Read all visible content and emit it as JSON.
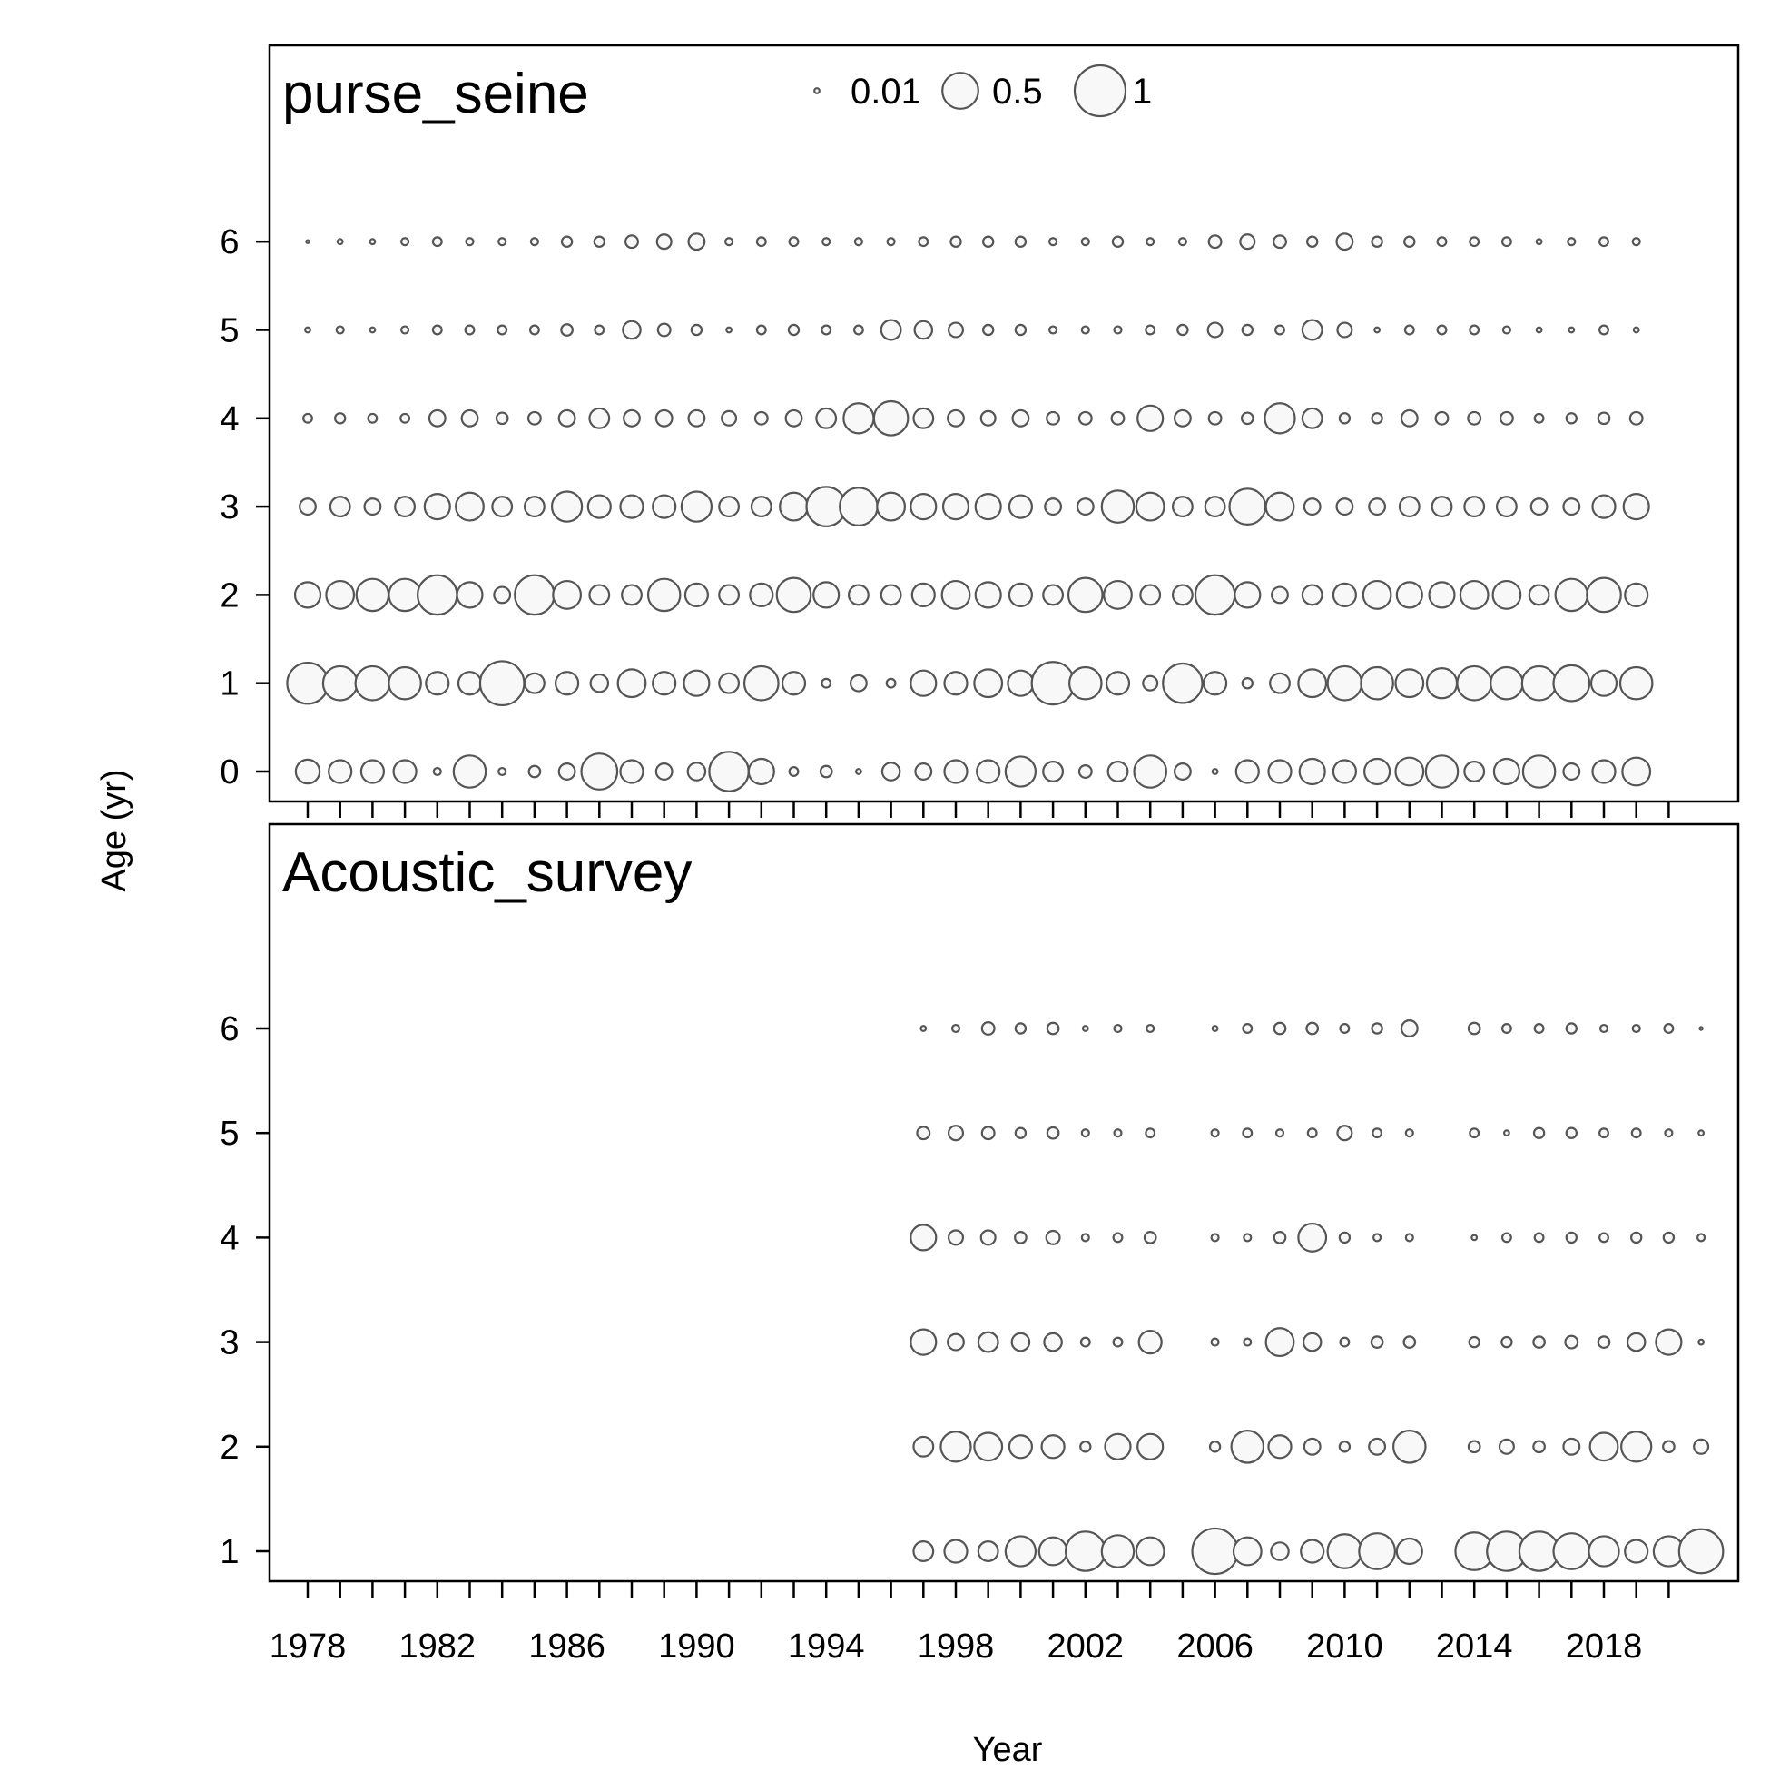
{
  "chart_data": {
    "type": "scatter",
    "subtype": "bubble",
    "xlabel": "Year",
    "ylabel": "Age (yr)",
    "x_ticks": [
      1978,
      1982,
      1986,
      1990,
      1994,
      1998,
      2002,
      2006,
      2010,
      2014,
      2018
    ],
    "x_minor_tick_years": [
      1978,
      1979,
      1980,
      1981,
      1982,
      1983,
      1984,
      1985,
      1986,
      1987,
      1988,
      1989,
      1990,
      1991,
      1992,
      1993,
      1994,
      1995,
      1996,
      1997,
      1998,
      1999,
      2000,
      2001,
      2002,
      2003,
      2004,
      2005,
      2006,
      2007,
      2008,
      2009,
      2010,
      2011,
      2012,
      2013,
      2014,
      2015,
      2016,
      2017,
      2018,
      2019,
      2020
    ],
    "xlim": [
      1976.8,
      2022.2
    ],
    "bubble_scale": "area proportional to value; 1 = largest bubble",
    "colors": {
      "bubble_stroke": "#555555",
      "bubble_fill": "#f8f8f8",
      "axis": "#000000"
    },
    "legend": {
      "position": "top-center of upper panel",
      "entries": [
        {
          "value": 0.01,
          "label": "0.01"
        },
        {
          "value": 0.5,
          "label": "0.5"
        },
        {
          "value": 1,
          "label": "1"
        }
      ]
    },
    "panels": [
      {
        "title": "purse_seine",
        "ages": [
          0,
          1,
          2,
          3,
          4,
          5,
          6
        ],
        "years": [
          1978,
          1979,
          1980,
          1981,
          1982,
          1983,
          1984,
          1985,
          1986,
          1987,
          1988,
          1989,
          1990,
          1991,
          1992,
          1993,
          1994,
          1995,
          1996,
          1997,
          1998,
          1999,
          2000,
          2001,
          2002,
          2003,
          2004,
          2005,
          2006,
          2007,
          2008,
          2009,
          2010,
          2011,
          2012,
          2013,
          2014,
          2015,
          2016,
          2017,
          2018,
          2019
        ],
        "values_by_age": {
          "0": [
            0.22,
            0.2,
            0.2,
            0.2,
            0.02,
            0.4,
            0.02,
            0.05,
            0.1,
            0.5,
            0.2,
            0.1,
            0.12,
            0.6,
            0.25,
            0.03,
            0.05,
            0.01,
            0.12,
            0.1,
            0.2,
            0.2,
            0.35,
            0.15,
            0.06,
            0.15,
            0.4,
            0.1,
            0.01,
            0.2,
            0.2,
            0.25,
            0.2,
            0.25,
            0.3,
            0.4,
            0.15,
            0.25,
            0.4,
            0.1,
            0.2,
            0.3
          ],
          "1": [
            0.65,
            0.45,
            0.45,
            0.4,
            0.2,
            0.2,
            0.75,
            0.15,
            0.2,
            0.12,
            0.3,
            0.2,
            0.25,
            0.15,
            0.45,
            0.2,
            0.03,
            0.1,
            0.03,
            0.25,
            0.2,
            0.3,
            0.25,
            0.7,
            0.4,
            0.2,
            0.08,
            0.6,
            0.2,
            0.04,
            0.15,
            0.3,
            0.45,
            0.4,
            0.3,
            0.35,
            0.45,
            0.4,
            0.45,
            0.5,
            0.25,
            0.4
          ],
          "2": [
            0.25,
            0.3,
            0.4,
            0.4,
            0.6,
            0.25,
            0.1,
            0.6,
            0.3,
            0.15,
            0.15,
            0.4,
            0.2,
            0.15,
            0.2,
            0.45,
            0.25,
            0.15,
            0.15,
            0.2,
            0.3,
            0.25,
            0.2,
            0.15,
            0.45,
            0.3,
            0.15,
            0.15,
            0.6,
            0.25,
            0.1,
            0.15,
            0.2,
            0.3,
            0.25,
            0.25,
            0.3,
            0.3,
            0.15,
            0.4,
            0.45,
            0.2
          ],
          "3": [
            0.1,
            0.15,
            0.1,
            0.15,
            0.25,
            0.3,
            0.15,
            0.15,
            0.35,
            0.2,
            0.2,
            0.2,
            0.35,
            0.15,
            0.15,
            0.3,
            0.6,
            0.55,
            0.3,
            0.25,
            0.25,
            0.25,
            0.2,
            0.1,
            0.1,
            0.4,
            0.3,
            0.15,
            0.15,
            0.5,
            0.3,
            0.1,
            0.1,
            0.1,
            0.15,
            0.15,
            0.15,
            0.15,
            0.1,
            0.1,
            0.2,
            0.25
          ],
          "4": [
            0.03,
            0.04,
            0.03,
            0.03,
            0.1,
            0.1,
            0.05,
            0.06,
            0.1,
            0.15,
            0.1,
            0.1,
            0.1,
            0.08,
            0.06,
            0.1,
            0.15,
            0.35,
            0.45,
            0.15,
            0.1,
            0.08,
            0.1,
            0.06,
            0.06,
            0.06,
            0.25,
            0.1,
            0.06,
            0.05,
            0.35,
            0.15,
            0.04,
            0.04,
            0.1,
            0.06,
            0.06,
            0.06,
            0.03,
            0.04,
            0.05,
            0.06
          ],
          "5": [
            0.01,
            0.02,
            0.01,
            0.02,
            0.03,
            0.03,
            0.03,
            0.03,
            0.05,
            0.03,
            0.12,
            0.06,
            0.04,
            0.01,
            0.03,
            0.04,
            0.03,
            0.03,
            0.15,
            0.12,
            0.08,
            0.04,
            0.04,
            0.02,
            0.02,
            0.02,
            0.03,
            0.04,
            0.08,
            0.04,
            0.03,
            0.15,
            0.08,
            0.01,
            0.03,
            0.03,
            0.03,
            0.02,
            0.01,
            0.01,
            0.03,
            0.01
          ],
          "6": [
            0.003,
            0.01,
            0.01,
            0.02,
            0.03,
            0.02,
            0.02,
            0.02,
            0.04,
            0.04,
            0.06,
            0.08,
            0.1,
            0.02,
            0.03,
            0.03,
            0.02,
            0.02,
            0.02,
            0.03,
            0.04,
            0.04,
            0.04,
            0.02,
            0.02,
            0.04,
            0.02,
            0.02,
            0.06,
            0.08,
            0.06,
            0.04,
            0.1,
            0.04,
            0.04,
            0.03,
            0.03,
            0.03,
            0.01,
            0.02,
            0.03,
            0.02
          ]
        }
      },
      {
        "title": "Acoustic_survey",
        "ages": [
          1,
          2,
          3,
          4,
          5,
          6
        ],
        "years": [
          1997,
          1998,
          1999,
          2000,
          2001,
          2002,
          2003,
          2004,
          2006,
          2007,
          2008,
          2009,
          2010,
          2011,
          2012,
          2014,
          2015,
          2016,
          2017,
          2018,
          2019,
          2020,
          2021
        ],
        "values_by_age": {
          "1": [
            0.15,
            0.2,
            0.15,
            0.35,
            0.3,
            0.6,
            0.4,
            0.3,
            0.8,
            0.3,
            0.12,
            0.2,
            0.45,
            0.5,
            0.25,
            0.55,
            0.6,
            0.6,
            0.5,
            0.35,
            0.2,
            0.35,
            0.75
          ],
          "2": [
            0.15,
            0.35,
            0.3,
            0.2,
            0.2,
            0.04,
            0.25,
            0.25,
            0.04,
            0.4,
            0.2,
            0.1,
            0.04,
            0.1,
            0.4,
            0.05,
            0.08,
            0.05,
            0.1,
            0.3,
            0.35,
            0.05,
            0.08
          ],
          "3": [
            0.25,
            0.1,
            0.15,
            0.12,
            0.12,
            0.03,
            0.03,
            0.2,
            0.02,
            0.02,
            0.3,
            0.12,
            0.03,
            0.05,
            0.05,
            0.04,
            0.04,
            0.05,
            0.06,
            0.05,
            0.12,
            0.25,
            0.01
          ],
          "4": [
            0.25,
            0.08,
            0.08,
            0.05,
            0.07,
            0.02,
            0.03,
            0.05,
            0.02,
            0.02,
            0.05,
            0.3,
            0.04,
            0.02,
            0.02,
            0.01,
            0.03,
            0.03,
            0.04,
            0.03,
            0.04,
            0.04,
            0.02
          ],
          "5": [
            0.06,
            0.08,
            0.06,
            0.04,
            0.05,
            0.02,
            0.02,
            0.03,
            0.02,
            0.03,
            0.02,
            0.03,
            0.08,
            0.03,
            0.02,
            0.03,
            0.01,
            0.04,
            0.04,
            0.03,
            0.03,
            0.02,
            0.01
          ],
          "6": [
            0.01,
            0.02,
            0.06,
            0.04,
            0.05,
            0.01,
            0.02,
            0.02,
            0.01,
            0.03,
            0.05,
            0.05,
            0.03,
            0.04,
            0.1,
            0.05,
            0.03,
            0.03,
            0.04,
            0.02,
            0.02,
            0.03,
            0.003
          ]
        }
      }
    ]
  }
}
